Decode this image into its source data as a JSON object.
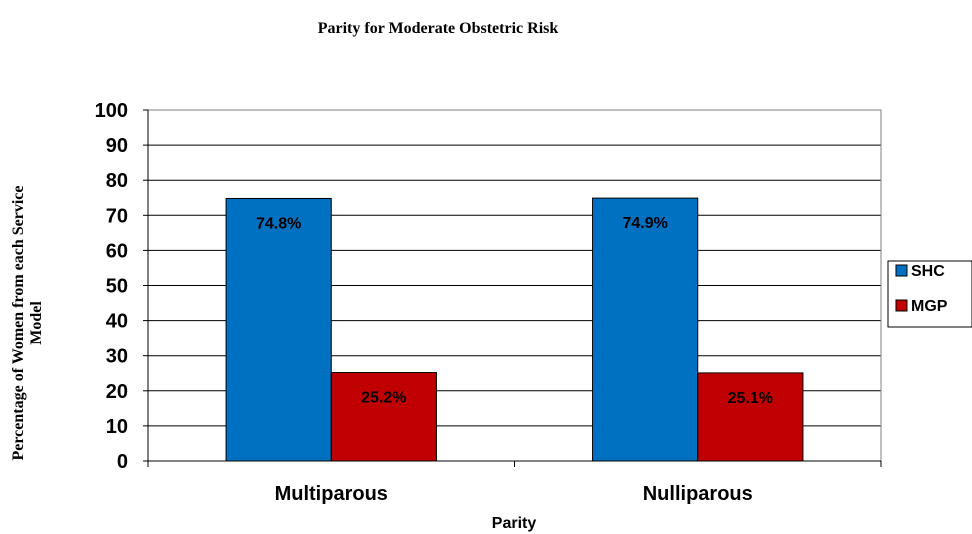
{
  "chart_data": {
    "type": "bar",
    "title": "Parity for Moderate Obstetric Risk",
    "xlabel": "Parity",
    "ylabel": [
      "Percentage of Women from each Service",
      "Model"
    ],
    "categories": [
      "Multiparous",
      "Nulliparous"
    ],
    "ylim": [
      0,
      100
    ],
    "yticks": [
      0,
      10,
      20,
      30,
      40,
      50,
      60,
      70,
      80,
      90,
      100
    ],
    "grid": true,
    "legend_position": "right",
    "series": [
      {
        "name": "SHC",
        "color": "#0070C0",
        "values": [
          74.8,
          74.9
        ],
        "labels": [
          "74.8%",
          "74.9%"
        ]
      },
      {
        "name": "MGP",
        "color": "#C00000",
        "values": [
          25.2,
          25.1
        ],
        "labels": [
          "25.2%",
          "25.1%"
        ]
      }
    ]
  }
}
